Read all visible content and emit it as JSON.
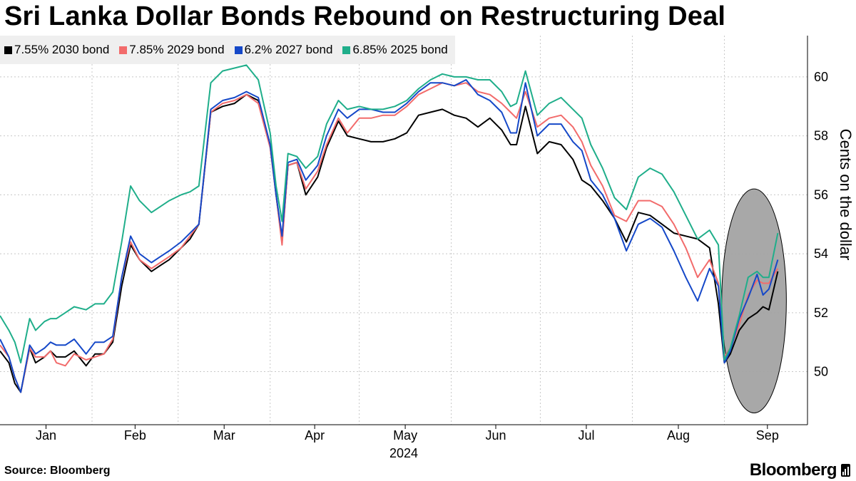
{
  "title": "Sri Lanka Dollar Bonds Rebound on Restructuring Deal",
  "source": "Source: Bloomberg",
  "brand": "Bloomberg",
  "brand_icon": "bloomberg-terminal-icon",
  "highlight_icon": "highlight-ellipse",
  "chart_data": {
    "type": "line",
    "title": "Sri Lanka Dollar Bonds Rebound on Restructuring Deal",
    "xlabel": "",
    "ylabel": "Cents on the dollar",
    "ylim": [
      48.2,
      61.4
    ],
    "yticks": [
      50,
      52,
      54,
      56,
      58,
      60
    ],
    "ytick_labels": [
      "50",
      "52",
      "54",
      "56",
      "58",
      "60"
    ],
    "x_labels": [
      "Jan",
      "Feb",
      "Mar",
      "Apr",
      "May",
      "Jun",
      "Jul",
      "Aug",
      "Sep"
    ],
    "x_year": "2024",
    "x_unit": "day-of-year 2024 (1 = Jan 1)",
    "x": [
      1,
      4,
      6,
      8,
      11,
      13,
      16,
      18,
      20,
      23,
      26,
      30,
      33,
      36,
      39,
      42,
      45,
      48,
      52,
      55,
      58,
      62,
      65,
      68,
      72,
      76,
      80,
      84,
      88,
      92,
      94,
      96,
      98,
      101,
      104,
      108,
      111,
      115,
      118,
      122,
      126,
      130,
      134,
      138,
      142,
      146,
      150,
      154,
      158,
      162,
      166,
      170,
      173,
      175,
      178,
      182,
      186,
      190,
      194,
      197,
      200,
      204,
      208,
      212,
      216,
      220,
      224,
      228,
      232,
      236,
      240,
      243,
      245,
      247,
      250,
      253,
      256,
      258,
      260,
      263
    ],
    "grid": true,
    "legend_position": "top-left",
    "series": [
      {
        "name": "7.55% 2030 bond",
        "color": "#000000",
        "values": [
          50.7,
          50.3,
          49.6,
          49.3,
          50.8,
          50.3,
          50.5,
          50.7,
          50.5,
          50.5,
          50.7,
          50.2,
          50.6,
          50.6,
          51.0,
          52.9,
          54.3,
          53.8,
          53.4,
          53.6,
          53.8,
          54.2,
          54.5,
          55.0,
          58.8,
          59.0,
          59.1,
          59.4,
          59.2,
          57.7,
          56.0,
          54.4,
          57.0,
          57.1,
          56.0,
          56.6,
          57.6,
          58.5,
          58.0,
          57.9,
          57.8,
          57.8,
          57.9,
          58.1,
          58.7,
          58.8,
          58.9,
          58.7,
          58.6,
          58.3,
          58.6,
          58.2,
          57.7,
          57.7,
          59.0,
          57.4,
          57.8,
          57.7,
          57.2,
          56.5,
          56.3,
          55.8,
          55.2,
          54.4,
          55.4,
          55.3,
          55.0,
          54.7,
          54.6,
          54.5,
          54.2,
          52.3,
          50.3,
          50.6,
          51.4,
          51.8,
          52.0,
          52.2,
          52.1,
          53.4
        ]
      },
      {
        "name": "7.85% 2029 bond",
        "color": "#f26b6b",
        "values": [
          50.9,
          50.5,
          49.8,
          49.3,
          50.8,
          50.5,
          50.5,
          50.7,
          50.3,
          50.2,
          50.6,
          50.4,
          50.5,
          50.6,
          51.1,
          53.2,
          54.4,
          53.8,
          53.5,
          53.7,
          53.9,
          54.2,
          54.6,
          55.0,
          58.8,
          59.1,
          59.2,
          59.4,
          59.1,
          57.6,
          56.0,
          54.3,
          57.0,
          57.1,
          56.2,
          56.8,
          57.7,
          58.6,
          58.1,
          58.6,
          58.6,
          58.7,
          58.7,
          59.0,
          59.4,
          59.6,
          59.8,
          59.7,
          59.8,
          59.5,
          59.4,
          59.1,
          58.8,
          58.6,
          59.5,
          58.3,
          58.6,
          58.7,
          58.3,
          57.8,
          57.0,
          56.3,
          55.3,
          55.1,
          55.8,
          55.8,
          55.6,
          55.0,
          54.2,
          53.2,
          53.8,
          53.0,
          50.5,
          50.8,
          51.6,
          52.6,
          53.1,
          53.0,
          53.0,
          53.5
        ]
      },
      {
        "name": "6.2% 2027 bond",
        "color": "#1548c8",
        "values": [
          51.1,
          50.5,
          49.8,
          49.3,
          50.9,
          50.6,
          50.8,
          51.0,
          50.9,
          50.9,
          51.1,
          50.6,
          51.0,
          51.0,
          51.2,
          53.2,
          54.6,
          54.0,
          53.7,
          53.9,
          54.1,
          54.4,
          54.7,
          55.0,
          58.9,
          59.2,
          59.3,
          59.5,
          59.3,
          57.7,
          56.0,
          54.6,
          57.1,
          57.2,
          56.5,
          57.0,
          58.0,
          58.9,
          58.6,
          58.9,
          58.9,
          58.8,
          58.8,
          59.1,
          59.5,
          59.8,
          59.8,
          59.7,
          59.9,
          59.4,
          59.2,
          58.8,
          58.1,
          58.1,
          59.8,
          58.0,
          58.4,
          58.4,
          57.8,
          57.5,
          56.5,
          56.0,
          55.2,
          54.1,
          55.0,
          55.2,
          54.9,
          54.1,
          53.2,
          52.4,
          53.5,
          52.9,
          50.3,
          50.7,
          51.8,
          52.5,
          53.3,
          52.6,
          52.8,
          53.8
        ]
      },
      {
        "name": "6.85% 2025 bond",
        "color": "#1fae8a",
        "values": [
          51.9,
          51.4,
          51.0,
          50.3,
          51.8,
          51.4,
          51.7,
          51.8,
          51.8,
          52.0,
          52.2,
          52.1,
          52.3,
          52.3,
          52.7,
          54.4,
          56.3,
          55.8,
          55.4,
          55.6,
          55.8,
          56.0,
          56.1,
          56.3,
          59.8,
          60.2,
          60.3,
          60.4,
          59.9,
          58.1,
          56.3,
          55.1,
          57.4,
          57.3,
          56.9,
          57.3,
          58.4,
          59.2,
          58.9,
          59.0,
          58.9,
          58.9,
          59.0,
          59.2,
          59.6,
          59.9,
          60.1,
          60.0,
          60.0,
          59.9,
          59.9,
          59.5,
          59.0,
          59.1,
          60.2,
          58.7,
          59.1,
          59.3,
          58.9,
          58.6,
          57.7,
          56.9,
          55.9,
          55.5,
          56.6,
          56.9,
          56.7,
          56.1,
          55.3,
          54.5,
          54.8,
          54.3,
          50.4,
          50.8,
          51.9,
          53.2,
          53.4,
          53.2,
          53.2,
          54.7
        ]
      }
    ],
    "annotations": [
      {
        "type": "ellipse",
        "label": "highlighted September rebound",
        "x_range": [
          247,
          263
        ],
        "y_range": [
          48.6,
          56.2
        ]
      }
    ]
  }
}
